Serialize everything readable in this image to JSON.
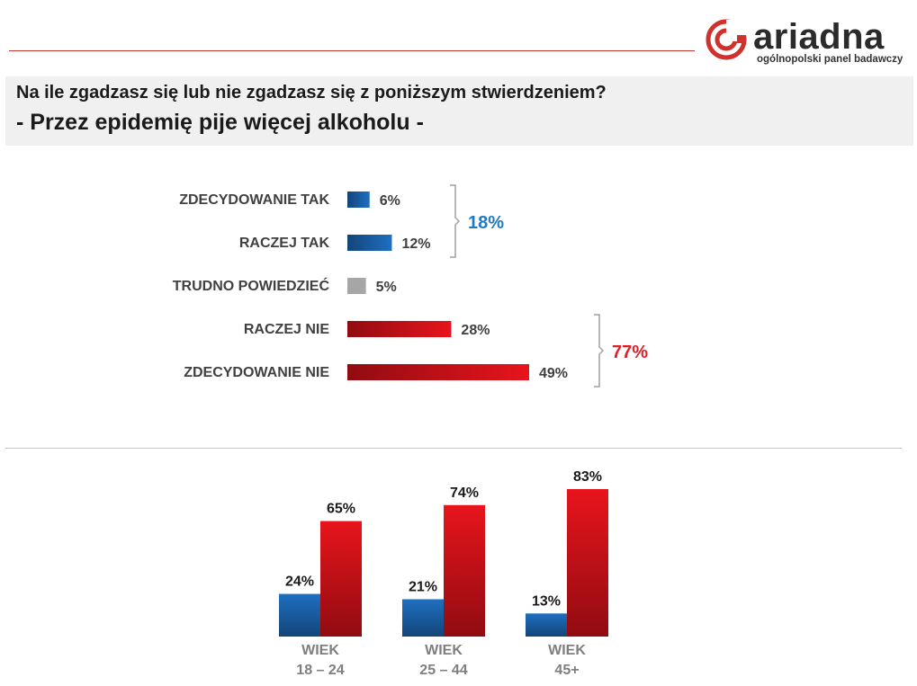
{
  "brand": {
    "name": "ariadna",
    "tagline": "ogólnopolski panel badawczy",
    "colors": {
      "logo_red": "#d0312d",
      "logo_text": "#2b2b2b"
    }
  },
  "question": {
    "text": "Na ile zgadzasz się lub nie zgadzasz się z poniższym stwierdzeniem?",
    "statement": "- Przez epidemię pije więcej alkoholu -"
  },
  "chart_data": [
    {
      "type": "bar",
      "orientation": "horizontal",
      "categories": [
        "ZDECYDOWANIE TAK",
        "RACZEJ TAK",
        "TRUDNO POWIEDZIEĆ",
        "RACZEJ NIE",
        "ZDECYDOWANIE NIE"
      ],
      "values": [
        6,
        12,
        5,
        28,
        49
      ],
      "value_labels": [
        "6%",
        "12%",
        "5%",
        "28%",
        "49%"
      ],
      "bar_colors": [
        "#1f6fc2",
        "#1f6fc2",
        "#a6a6a6",
        "#e8141c",
        "#e8141c"
      ],
      "xlim": [
        0,
        55
      ],
      "grid": false,
      "groups": [
        {
          "label": "18%",
          "value": 18,
          "members": [
            "ZDECYDOWANIE TAK",
            "RACZEJ TAK"
          ],
          "color": "#1f7ac4"
        },
        {
          "label": "77%",
          "value": 77,
          "members": [
            "RACZEJ NIE",
            "ZDECYDOWANIE NIE"
          ],
          "color": "#e31e24"
        }
      ]
    },
    {
      "type": "bar",
      "orientation": "vertical",
      "categories": [
        [
          "WIEK",
          "18 – 24"
        ],
        [
          "WIEK",
          "25 – 44"
        ],
        [
          "WIEK",
          "45+"
        ]
      ],
      "series": [
        {
          "values": [
            24,
            21,
            13
          ],
          "labels": [
            "24%",
            "21%",
            "13%"
          ],
          "color": "#1f6fc2"
        },
        {
          "values": [
            65,
            74,
            83
          ],
          "labels": [
            "65%",
            "74%",
            "83%"
          ],
          "color": "#e8141c"
        }
      ],
      "ylim": [
        0,
        90
      ],
      "grid": false
    }
  ]
}
